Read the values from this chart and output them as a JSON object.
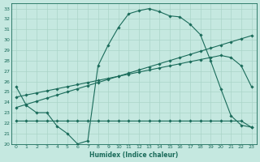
{
  "title": "",
  "xlabel": "Humidex (Indice chaleur)",
  "ylabel": "",
  "xlim": [
    -0.5,
    23.5
  ],
  "ylim": [
    20,
    33.5
  ],
  "yticks": [
    20,
    21,
    22,
    23,
    24,
    25,
    26,
    27,
    28,
    29,
    30,
    31,
    32,
    33
  ],
  "xticks": [
    0,
    1,
    2,
    3,
    4,
    5,
    6,
    7,
    8,
    9,
    10,
    11,
    12,
    13,
    14,
    15,
    16,
    17,
    18,
    19,
    20,
    21,
    22,
    23
  ],
  "bg_color": "#c5e8e0",
  "line_color": "#1a6b5a",
  "grid_color": "#aad4c8",
  "series1_x": [
    0,
    1,
    2,
    3,
    4,
    5,
    6,
    7,
    8,
    9,
    10,
    11,
    12,
    13,
    14,
    15,
    16,
    17,
    18,
    19,
    20,
    21,
    22,
    23
  ],
  "series1_y": [
    25.5,
    23.7,
    23.0,
    23.0,
    21.7,
    21.0,
    20.0,
    20.3,
    27.5,
    29.5,
    31.2,
    32.5,
    32.8,
    33.0,
    32.7,
    32.3,
    32.2,
    31.5,
    30.5,
    28.0,
    25.3,
    22.7,
    21.8,
    21.6
  ],
  "series2_x": [
    0,
    1,
    2,
    3,
    4,
    5,
    6,
    7,
    8,
    9,
    10,
    11,
    12,
    13,
    14,
    15,
    16,
    17,
    18,
    19,
    20,
    21,
    22,
    23
  ],
  "series2_y": [
    22.2,
    22.2,
    22.2,
    22.2,
    22.2,
    22.2,
    22.2,
    22.2,
    22.2,
    22.2,
    22.2,
    22.2,
    22.2,
    22.2,
    22.2,
    22.2,
    22.2,
    22.2,
    22.2,
    22.2,
    22.2,
    22.2,
    22.2,
    21.6
  ],
  "series3_x": [
    0,
    1,
    2,
    3,
    4,
    5,
    6,
    7,
    8,
    9,
    10,
    11,
    12,
    13,
    14,
    15,
    16,
    17,
    18,
    19,
    20,
    21,
    22,
    23
  ],
  "series3_y": [
    23.5,
    23.8,
    24.1,
    24.4,
    24.7,
    25.0,
    25.3,
    25.6,
    25.9,
    26.2,
    26.5,
    26.8,
    27.1,
    27.4,
    27.7,
    28.0,
    28.3,
    28.6,
    28.9,
    29.2,
    29.5,
    29.8,
    30.1,
    30.4
  ],
  "series4_x": [
    0,
    1,
    2,
    3,
    4,
    5,
    6,
    7,
    8,
    9,
    10,
    11,
    12,
    13,
    14,
    15,
    16,
    17,
    18,
    19,
    20,
    21,
    22,
    23
  ],
  "series4_y": [
    24.5,
    24.7,
    24.9,
    25.1,
    25.3,
    25.5,
    25.7,
    25.9,
    26.1,
    26.3,
    26.5,
    26.7,
    26.9,
    27.1,
    27.3,
    27.5,
    27.7,
    27.9,
    28.1,
    28.3,
    28.5,
    28.3,
    27.5,
    25.5
  ]
}
